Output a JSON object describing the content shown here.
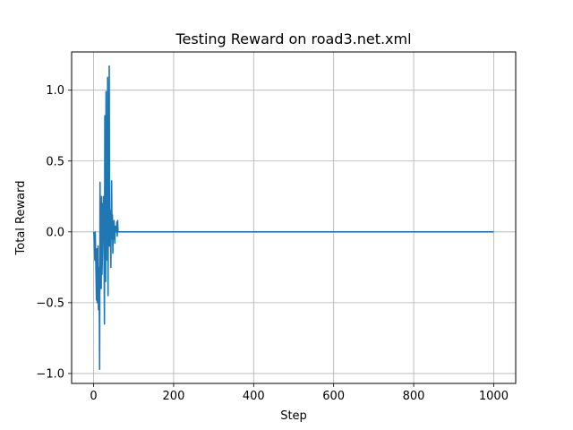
{
  "chart_data": {
    "type": "line",
    "title": "Testing Reward on road3.net.xml",
    "xlabel": "Step",
    "ylabel": "Total Reward",
    "xlim": [
      -55,
      1055
    ],
    "ylim": [
      -1.07,
      1.27
    ],
    "xticks": [
      0,
      200,
      400,
      600,
      800,
      1000
    ],
    "yticks": [
      -1.0,
      -0.5,
      0.0,
      0.5,
      1.0
    ],
    "xtick_labels": [
      "0",
      "200",
      "400",
      "600",
      "800",
      "1000"
    ],
    "ytick_labels": [
      "−1.0",
      "−0.5",
      "0.0",
      "0.5",
      "1.0"
    ],
    "grid": true,
    "color": "#1f77b4",
    "series": [
      {
        "x": [
          0,
          1,
          2,
          3,
          4,
          5,
          6,
          7,
          8,
          9,
          10,
          11,
          12,
          13,
          14,
          15,
          16,
          17,
          18,
          19,
          20,
          21,
          22,
          23,
          24,
          25,
          26,
          27,
          28,
          29,
          30,
          31,
          32,
          33,
          34,
          35,
          36,
          37,
          38,
          39,
          40,
          41,
          42,
          43,
          44,
          45,
          46,
          47,
          48,
          49,
          50,
          51,
          52,
          53,
          54,
          55,
          56,
          57,
          58,
          59,
          60,
          61,
          62,
          63,
          64,
          65,
          1000
        ],
        "y": [
          0.0,
          -0.02,
          -0.1,
          -0.2,
          0.0,
          -0.15,
          -0.3,
          -0.48,
          -0.12,
          -0.5,
          -0.3,
          -0.1,
          -0.55,
          -0.25,
          -0.45,
          -0.97,
          0.35,
          -0.2,
          0.1,
          -0.4,
          0.25,
          -0.3,
          -0.15,
          0.2,
          0.0,
          0.25,
          -0.1,
          -0.65,
          0.82,
          0.1,
          -0.35,
          0.99,
          -0.2,
          0.6,
          0.05,
          1.09,
          -0.45,
          0.35,
          0.5,
          1.17,
          -0.1,
          0.0,
          0.15,
          -0.25,
          0.1,
          0.36,
          -0.05,
          0.12,
          -0.15,
          0.05,
          -0.05,
          0.08,
          0.0,
          -0.08,
          0.04,
          0.0,
          0.02,
          0.0,
          0.07,
          -0.03,
          0.08,
          0.0,
          0.0,
          0.0,
          0.0,
          0.0,
          0.0
        ]
      }
    ]
  }
}
